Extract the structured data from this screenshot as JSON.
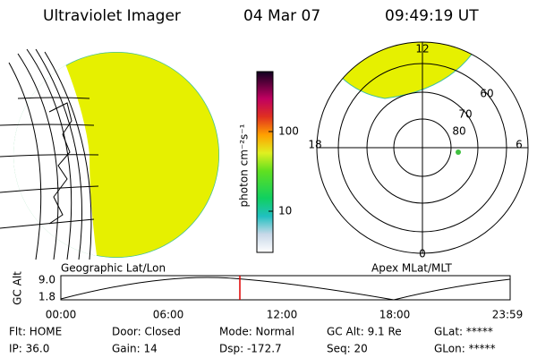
{
  "header": {
    "title": "Ultraviolet Imager",
    "date": "04 Mar 07",
    "time": "09:49:19 UT"
  },
  "colorbar": {
    "label": "photon cm⁻²s⁻¹",
    "ticks": [
      "100",
      "10"
    ]
  },
  "panels": {
    "left": "Geographic Lat/Lon",
    "right": "Apex MLat/MLT"
  },
  "polar": {
    "clock": [
      "12",
      "18",
      "6",
      "0"
    ],
    "rings": [
      "80",
      "70",
      "60"
    ]
  },
  "altitude": {
    "label": "GC Alt",
    "yticks": [
      "9.0",
      "1.8"
    ],
    "xticks": [
      "00:00",
      "06:00",
      "12:00",
      "18:00",
      "23:59"
    ]
  },
  "info": [
    [
      "Flt: HOME",
      "Door: Closed",
      "Mode: Normal",
      "GC Alt: 9.1 Re",
      "GLat: *****"
    ],
    [
      "IP: 36.0",
      "Gain: 14",
      "Dsp: -172.7",
      "Seq: 20",
      "GLon: *****"
    ]
  ]
}
